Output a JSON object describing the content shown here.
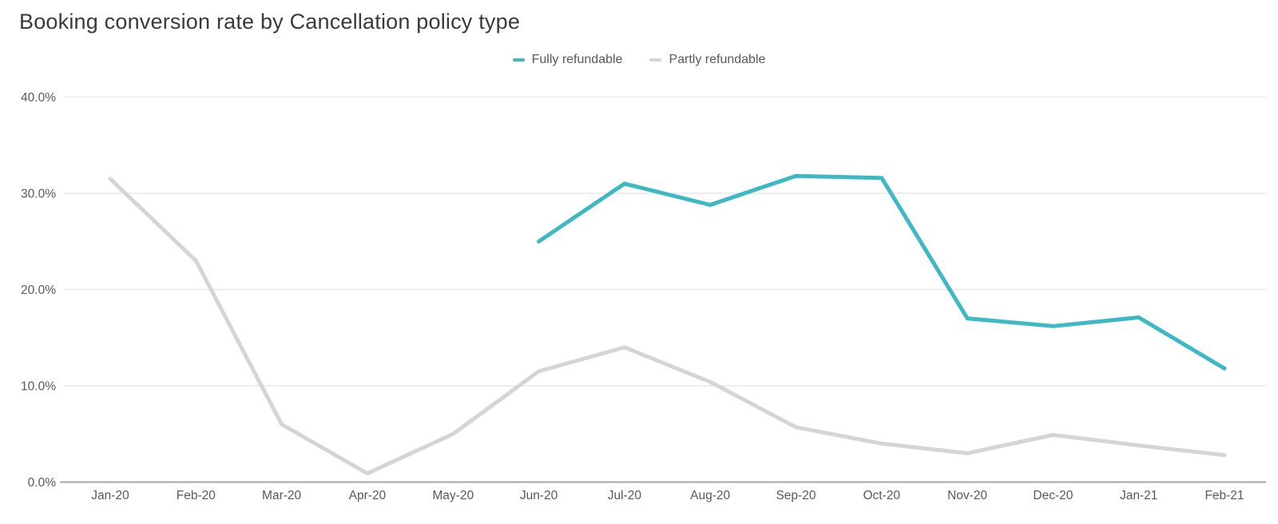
{
  "title": "Booking conversion rate by Cancellation policy type",
  "colors": {
    "background": "#ffffff",
    "title_text": "#3a3a3a",
    "tick_text": "#595959",
    "gridline": "#e7e7e7",
    "axis_line": "#a6a6a6",
    "series_fully_refundable": "#3cb9c4",
    "series_partly_refundable": "#d5d5d5"
  },
  "legend": {
    "items": [
      {
        "label": "Fully refundable"
      },
      {
        "label": "Partly refundable"
      }
    ]
  },
  "chart_data": {
    "type": "line",
    "title": "Booking conversion rate by Cancellation policy type",
    "categories": [
      "Jan-20",
      "Feb-20",
      "Mar-20",
      "Apr-20",
      "May-20",
      "Jun-20",
      "Jul-20",
      "Aug-20",
      "Sep-20",
      "Oct-20",
      "Nov-20",
      "Dec-20",
      "Jan-21",
      "Feb-21"
    ],
    "series": [
      {
        "name": "Fully refundable",
        "color": "#3cb9c4",
        "values": [
          null,
          null,
          null,
          null,
          null,
          25.0,
          31.0,
          28.8,
          31.8,
          31.6,
          17.0,
          16.2,
          17.1,
          11.8
        ]
      },
      {
        "name": "Partly refundable",
        "color": "#d5d5d5",
        "values": [
          31.5,
          23.0,
          6.0,
          0.9,
          5.0,
          11.5,
          14.0,
          10.4,
          5.7,
          4.0,
          3.0,
          4.9,
          3.8,
          2.8
        ]
      }
    ],
    "xlabel": "",
    "ylabel": "",
    "ylim": [
      0,
      40
    ],
    "yticks": [
      0,
      10,
      20,
      30,
      40
    ],
    "ytick_labels": [
      "0.0%",
      "10.0%",
      "20.0%",
      "30.0%",
      "40.0%"
    ],
    "grid": "horizontal",
    "legend_position": "top-center",
    "line_width": 5
  }
}
